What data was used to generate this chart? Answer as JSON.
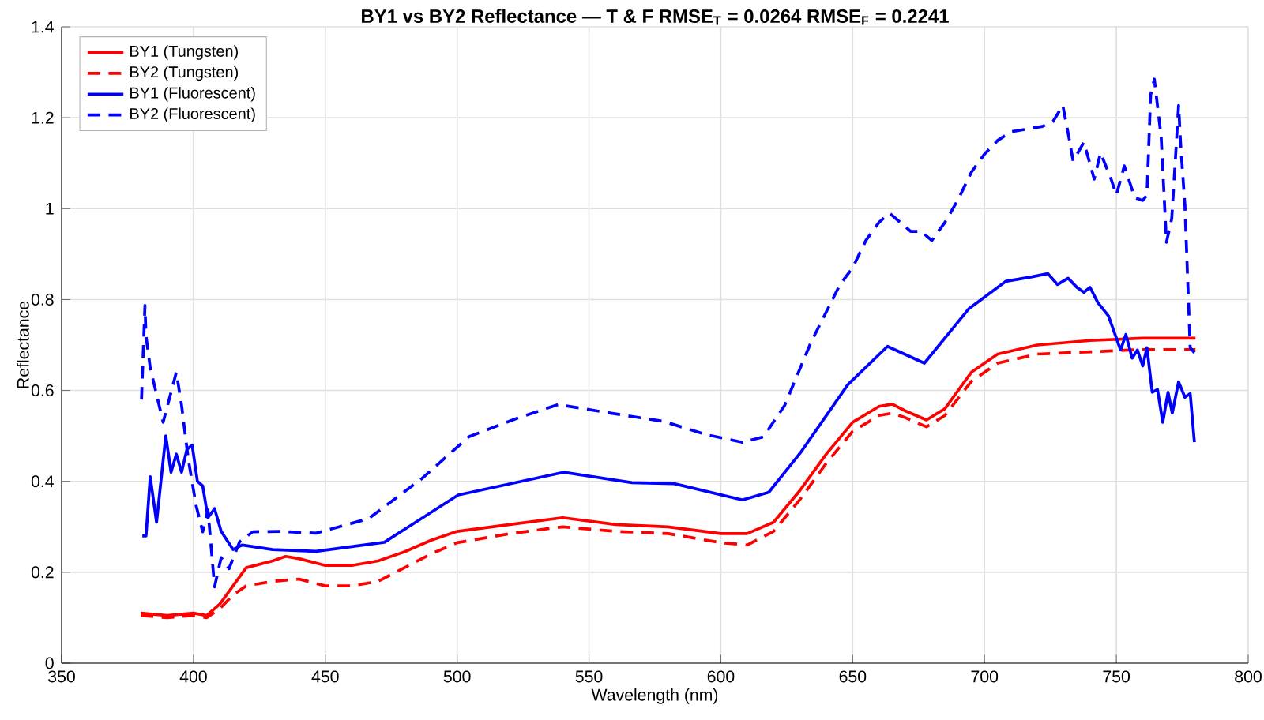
{
  "chart_data": {
    "type": "line",
    "title": "BY1  vs  BY2  Reflectance  —  T  &  F     RMSE$_{T}$ = 0.0264     RMSE$_{F}$ = 0.2241",
    "xlabel": "Wavelength (nm)",
    "ylabel": "Reflectance",
    "xlim": [
      350,
      800
    ],
    "xticks": [
      350,
      400,
      450,
      500,
      550,
      600,
      650,
      700,
      750,
      800
    ],
    "ylim": [
      0,
      1.4
    ],
    "yticks": [
      0,
      0.2,
      0.4,
      0.6,
      0.8,
      1,
      1.2,
      1.4
    ],
    "grid": true,
    "legend": "top left",
    "series": [
      {
        "name": "BY1 (Tungsten)",
        "color": "#ff0000",
        "line_style": "solid",
        "x": [
          380,
          390,
          400,
          405,
          410,
          415,
          420,
          430,
          435,
          440,
          450,
          460,
          470,
          480,
          490,
          500,
          520,
          540,
          560,
          580,
          600,
          610,
          620,
          630,
          640,
          650,
          660,
          665,
          670,
          678,
          685,
          695,
          705,
          720,
          740,
          760,
          780
        ],
        "values": [
          0.11,
          0.105,
          0.11,
          0.105,
          0.13,
          0.17,
          0.21,
          0.225,
          0.235,
          0.23,
          0.215,
          0.215,
          0.225,
          0.245,
          0.27,
          0.29,
          0.305,
          0.32,
          0.305,
          0.3,
          0.285,
          0.285,
          0.31,
          0.38,
          0.46,
          0.53,
          0.565,
          0.57,
          0.555,
          0.535,
          0.56,
          0.64,
          0.68,
          0.7,
          0.71,
          0.715,
          0.715
        ]
      },
      {
        "name": "BY2 (Tungsten)",
        "color": "#ff0000",
        "line_style": "dashed",
        "x": [
          380,
          390,
          400,
          405,
          410,
          415,
          420,
          430,
          440,
          450,
          460,
          470,
          480,
          490,
          500,
          520,
          540,
          560,
          580,
          600,
          610,
          620,
          630,
          640,
          650,
          660,
          665,
          670,
          678,
          685,
          695,
          705,
          720,
          740,
          760,
          780
        ],
        "values": [
          0.105,
          0.1,
          0.105,
          0.1,
          0.12,
          0.15,
          0.17,
          0.18,
          0.185,
          0.17,
          0.17,
          0.18,
          0.21,
          0.24,
          0.265,
          0.285,
          0.3,
          0.29,
          0.285,
          0.265,
          0.26,
          0.29,
          0.36,
          0.44,
          0.51,
          0.545,
          0.55,
          0.54,
          0.52,
          0.545,
          0.62,
          0.66,
          0.68,
          0.685,
          0.69,
          0.69
        ]
      },
      {
        "name": "BY1 (Fluorescent)",
        "color": "#0000ff",
        "line_style": "solid",
        "x": [
          380.6,
          382,
          383.6,
          386,
          389.5,
          391.5,
          393.5,
          395.5,
          397.5,
          399.5,
          401.5,
          403.5,
          405.5,
          408,
          410.5,
          415,
          418.5,
          430,
          446.5,
          472.4,
          500.4,
          540.3,
          566.3,
          582.3,
          608.2,
          618.2,
          630.2,
          648.2,
          663.2,
          677.2,
          694.1,
          708,
          718,
          724,
          727.7,
          731.7,
          735,
          737.7,
          740,
          743,
          747,
          751.6,
          753.6,
          756,
          758,
          760,
          761.6,
          763.6,
          765.6,
          767.6,
          769.6,
          771.2,
          773.6,
          776,
          778,
          779.6
        ],
        "values": [
          0.28,
          0.28,
          0.41,
          0.31,
          0.5,
          0.42,
          0.46,
          0.42,
          0.47,
          0.48,
          0.4,
          0.39,
          0.32,
          0.34,
          0.29,
          0.25,
          0.26,
          0.25,
          0.246,
          0.266,
          0.37,
          0.42,
          0.397,
          0.395,
          0.359,
          0.376,
          0.463,
          0.613,
          0.697,
          0.66,
          0.78,
          0.84,
          0.85,
          0.857,
          0.833,
          0.847,
          0.827,
          0.816,
          0.827,
          0.793,
          0.764,
          0.689,
          0.723,
          0.671,
          0.689,
          0.654,
          0.694,
          0.596,
          0.602,
          0.53,
          0.596,
          0.55,
          0.619,
          0.585,
          0.593,
          0.486
        ]
      },
      {
        "name": "BY2 (Fluorescent)",
        "color": "#0000ff",
        "line_style": "dashed",
        "x": [
          380.3,
          381.6,
          382,
          383.6,
          388.5,
          392,
          393.5,
          395.5,
          398,
          401,
          403.5,
          405.5,
          408,
          410.5,
          413.5,
          417.5,
          422.5,
          432.5,
          446.5,
          466.4,
          486.4,
          504.4,
          522.4,
          538.3,
          558.3,
          578.3,
          594.3,
          608.2,
          616.2,
          624.2,
          634.2,
          645.2,
          650,
          655,
          660,
          664,
          668,
          672,
          676,
          680,
          685,
          690,
          695,
          700,
          705,
          710,
          716,
          722,
          726,
          729.7,
          732,
          733.6,
          737.7,
          741.6,
          744,
          748,
          750,
          753,
          757,
          760,
          761.6,
          763,
          764.4,
          767,
          769,
          771,
          772.4,
          773.6,
          774.4,
          776,
          778,
          779.6
        ],
        "values": [
          0.58,
          0.787,
          0.72,
          0.65,
          0.53,
          0.607,
          0.64,
          0.567,
          0.45,
          0.347,
          0.289,
          0.337,
          0.168,
          0.232,
          0.208,
          0.267,
          0.289,
          0.29,
          0.286,
          0.318,
          0.405,
          0.498,
          0.538,
          0.569,
          0.55,
          0.532,
          0.503,
          0.486,
          0.498,
          0.567,
          0.706,
          0.833,
          0.87,
          0.93,
          0.97,
          0.99,
          0.97,
          0.95,
          0.95,
          0.93,
          0.97,
          1.02,
          1.08,
          1.12,
          1.15,
          1.169,
          1.175,
          1.181,
          1.192,
          1.227,
          1.157,
          1.105,
          1.146,
          1.065,
          1.123,
          1.065,
          1.03,
          1.094,
          1.024,
          1.018,
          1.03,
          1.25,
          1.285,
          1.157,
          0.926,
          0.978,
          1.11,
          1.227,
          1.14,
          1.007,
          0.694,
          0.683
        ]
      }
    ]
  }
}
